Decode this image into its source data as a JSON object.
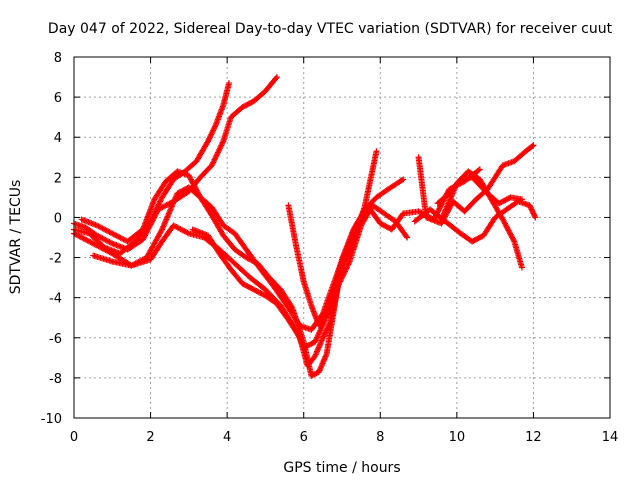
{
  "chart_data": {
    "type": "scatter",
    "title": "Day 047 of 2022, Sidereal Day-to-day VTEC variation (SDTVAR) for receiver cuut",
    "xlabel": "GPS time / hours",
    "ylabel": "SDTVAR / TECUs",
    "xlim": [
      0,
      14
    ],
    "ylim": [
      -10,
      8
    ],
    "xticks": [
      "0",
      "2",
      "4",
      "6",
      "8",
      "10",
      "12",
      "14"
    ],
    "yticks": [
      "-10",
      "-8",
      "-6",
      "-4",
      "-2",
      "0",
      "2",
      "4",
      "6",
      "8"
    ],
    "grid": true,
    "marker": "+",
    "color": "#ff0000",
    "series": [
      {
        "points": [
          [
            0.0,
            -0.3
          ],
          [
            0.3,
            -0.5
          ],
          [
            0.6,
            -0.9
          ],
          [
            1.0,
            -1.3
          ],
          [
            1.4,
            -1.6
          ],
          [
            1.8,
            -1.1
          ],
          [
            2.2,
            0.4
          ],
          [
            2.6,
            0.8
          ],
          [
            3.0,
            1.3
          ],
          [
            3.3,
            2.0
          ],
          [
            3.6,
            2.6
          ],
          [
            3.9,
            3.8
          ],
          [
            4.1,
            5.0
          ],
          [
            4.4,
            5.5
          ],
          [
            4.7,
            5.8
          ],
          [
            5.0,
            6.3
          ],
          [
            5.3,
            7.0
          ]
        ]
      },
      {
        "points": [
          [
            0.0,
            -0.6
          ],
          [
            0.4,
            -0.8
          ],
          [
            0.8,
            -1.5
          ],
          [
            1.2,
            -1.8
          ],
          [
            1.6,
            -1.2
          ],
          [
            2.0,
            -0.2
          ],
          [
            2.3,
            1.0
          ],
          [
            2.6,
            1.9
          ],
          [
            2.9,
            2.3
          ],
          [
            3.2,
            2.8
          ],
          [
            3.5,
            3.8
          ],
          [
            3.7,
            4.6
          ],
          [
            3.9,
            5.6
          ],
          [
            4.05,
            6.7
          ]
        ]
      },
      {
        "points": [
          [
            0.0,
            -0.8
          ],
          [
            0.5,
            -1.3
          ],
          [
            1.0,
            -1.8
          ],
          [
            1.5,
            -2.4
          ],
          [
            1.9,
            -2.0
          ],
          [
            2.3,
            -0.6
          ],
          [
            2.7,
            1.2
          ],
          [
            3.0,
            1.5
          ],
          [
            3.3,
            1.0
          ],
          [
            3.6,
            0.5
          ],
          [
            3.9,
            -0.4
          ],
          [
            4.2,
            -0.8
          ],
          [
            4.5,
            -1.6
          ],
          [
            4.8,
            -2.4
          ],
          [
            5.2,
            -3.4
          ],
          [
            5.6,
            -4.5
          ],
          [
            5.9,
            -5.4
          ],
          [
            6.2,
            -5.6
          ],
          [
            6.5,
            -4.8
          ],
          [
            6.8,
            -3.2
          ],
          [
            7.1,
            -1.6
          ],
          [
            7.4,
            -0.3
          ],
          [
            7.7,
            0.5
          ],
          [
            8.0,
            -0.3
          ],
          [
            8.3,
            -0.6
          ],
          [
            8.6,
            0.2
          ],
          [
            9.0,
            0.3
          ],
          [
            9.4,
            -0.1
          ],
          [
            9.8,
            1.4
          ],
          [
            10.2,
            1.8
          ],
          [
            10.6,
            2.4
          ]
        ]
      },
      {
        "points": [
          [
            0.5,
            -1.9
          ],
          [
            1.0,
            -2.2
          ],
          [
            1.5,
            -2.4
          ],
          [
            2.0,
            -2.1
          ],
          [
            2.3,
            -1.2
          ],
          [
            2.6,
            -0.4
          ],
          [
            3.0,
            -0.8
          ],
          [
            3.4,
            -1.0
          ],
          [
            3.8,
            -1.6
          ],
          [
            4.2,
            -2.3
          ],
          [
            4.6,
            -3.0
          ],
          [
            5.0,
            -3.6
          ],
          [
            5.4,
            -4.4
          ],
          [
            5.8,
            -5.6
          ],
          [
            6.0,
            -6.5
          ],
          [
            6.3,
            -6.2
          ],
          [
            6.7,
            -4.5
          ],
          [
            7.0,
            -2.5
          ],
          [
            7.3,
            -1.2
          ],
          [
            7.6,
            0.6
          ],
          [
            7.9,
            3.3
          ]
        ]
      },
      {
        "points": [
          [
            0.2,
            -0.1
          ],
          [
            0.6,
            -0.4
          ],
          [
            1.0,
            -0.8
          ],
          [
            1.4,
            -1.2
          ],
          [
            1.8,
            -0.6
          ],
          [
            2.1,
            0.9
          ],
          [
            2.4,
            1.8
          ],
          [
            2.7,
            2.3
          ],
          [
            3.0,
            2.1
          ],
          [
            3.3,
            1.0
          ],
          [
            3.6,
            0.1
          ],
          [
            3.9,
            -0.9
          ],
          [
            4.2,
            -1.6
          ],
          [
            4.5,
            -2.0
          ],
          [
            4.8,
            -2.3
          ],
          [
            5.1,
            -3.0
          ],
          [
            5.4,
            -3.6
          ],
          [
            5.7,
            -4.5
          ],
          [
            6.0,
            -6.2
          ],
          [
            6.2,
            -7.9
          ],
          [
            6.4,
            -7.7
          ],
          [
            6.6,
            -6.8
          ],
          [
            6.8,
            -4.5
          ],
          [
            7.0,
            -2.1
          ],
          [
            7.3,
            -0.6
          ],
          [
            7.6,
            0.4
          ],
          [
            7.9,
            1.0
          ],
          [
            8.2,
            1.4
          ],
          [
            8.6,
            1.9
          ]
        ]
      },
      {
        "points": [
          [
            3.1,
            -0.6
          ],
          [
            3.5,
            -0.9
          ],
          [
            3.8,
            -1.8
          ],
          [
            4.1,
            -2.6
          ],
          [
            4.4,
            -3.3
          ],
          [
            4.7,
            -3.6
          ],
          [
            5.0,
            -3.9
          ],
          [
            5.3,
            -4.3
          ],
          [
            5.6,
            -5.1
          ],
          [
            5.9,
            -6.0
          ],
          [
            6.1,
            -7.4
          ],
          [
            6.3,
            -6.9
          ],
          [
            6.5,
            -6.0
          ],
          [
            6.7,
            -5.2
          ],
          [
            6.9,
            -3.4
          ],
          [
            7.2,
            -2.2
          ],
          [
            7.5,
            -0.4
          ],
          [
            7.8,
            0.6
          ],
          [
            8.1,
            0.2
          ],
          [
            8.4,
            -0.2
          ],
          [
            8.7,
            -1.0
          ]
        ]
      },
      {
        "points": [
          [
            5.6,
            0.6
          ],
          [
            5.8,
            -1.4
          ],
          [
            6.0,
            -3.2
          ],
          [
            6.2,
            -4.4
          ],
          [
            6.4,
            -5.4
          ],
          [
            6.6,
            -4.8
          ],
          [
            6.8,
            -3.5
          ],
          [
            7.0,
            -2.2
          ]
        ]
      },
      {
        "points": [
          [
            9.0,
            3.0
          ],
          [
            9.2,
            0.0
          ],
          [
            9.6,
            -0.3
          ],
          [
            9.9,
            0.8
          ],
          [
            10.2,
            0.3
          ],
          [
            10.5,
            0.9
          ],
          [
            10.8,
            1.4
          ],
          [
            11.0,
            2.0
          ],
          [
            11.2,
            2.6
          ],
          [
            11.5,
            2.8
          ],
          [
            11.8,
            3.3
          ],
          [
            12.0,
            3.6
          ]
        ]
      },
      {
        "points": [
          [
            8.9,
            -0.2
          ],
          [
            9.3,
            0.4
          ],
          [
            9.7,
            -0.2
          ],
          [
            10.1,
            -0.8
          ],
          [
            10.4,
            -1.2
          ],
          [
            10.7,
            -0.9
          ],
          [
            11.0,
            0.0
          ],
          [
            11.3,
            0.4
          ],
          [
            11.6,
            0.8
          ],
          [
            11.9,
            0.6
          ],
          [
            12.05,
            0.0
          ]
        ]
      },
      {
        "points": [
          [
            9.6,
            -0.1
          ],
          [
            10.0,
            1.7
          ],
          [
            10.3,
            2.3
          ],
          [
            10.6,
            1.9
          ],
          [
            10.9,
            0.9
          ],
          [
            11.2,
            -0.1
          ],
          [
            11.5,
            -1.2
          ],
          [
            11.7,
            -2.5
          ]
        ]
      },
      {
        "points": [
          [
            9.5,
            0.7
          ],
          [
            9.8,
            1.2
          ],
          [
            10.1,
            1.9
          ],
          [
            10.4,
            2.0
          ],
          [
            10.8,
            1.2
          ],
          [
            11.1,
            0.7
          ],
          [
            11.4,
            1.0
          ],
          [
            11.7,
            0.9
          ]
        ]
      }
    ]
  }
}
